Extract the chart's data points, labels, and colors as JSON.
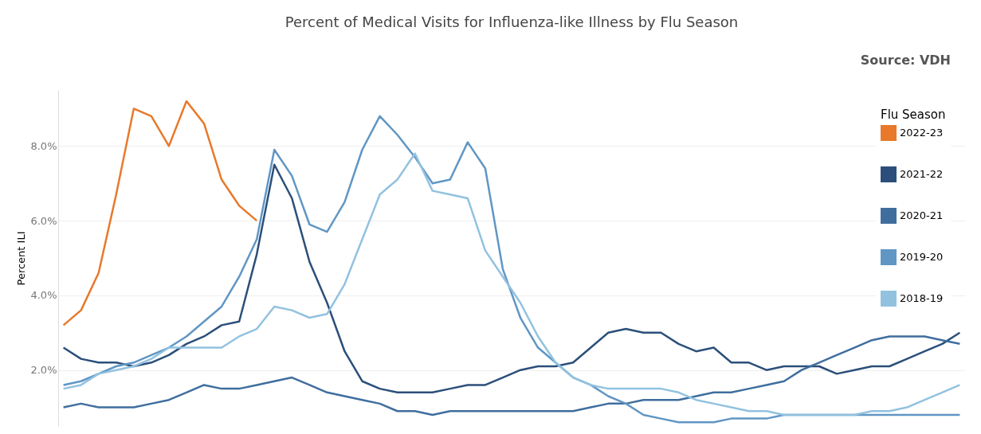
{
  "chart_data": {
    "type": "line",
    "title": "Percent of Medical Visits for Influenza-like Illness by Flu Season",
    "ylabel": "Percent ILI",
    "legend_title": "Flu Season",
    "annotations": [
      "Source: VDH"
    ],
    "categories": [
      null,
      null,
      null,
      null,
      null,
      null,
      null,
      null,
      null,
      null,
      null,
      null,
      null,
      null,
      null,
      null,
      null,
      null,
      null,
      null,
      null,
      null,
      null,
      null,
      null,
      null,
      null,
      null,
      null,
      null,
      null,
      null,
      null,
      null,
      null,
      null,
      null,
      null,
      null,
      null,
      null,
      null,
      null,
      null,
      null,
      null,
      null,
      null,
      null,
      null,
      null,
      null
    ],
    "series": [
      {
        "name": "2022-23",
        "color": "#e8792b",
        "values": [
          3.2,
          3.6,
          4.6,
          6.7,
          9.0,
          8.8,
          8.0,
          9.2,
          8.6,
          7.1,
          6.4,
          6.0,
          null,
          null,
          null,
          null,
          null,
          null,
          null,
          null,
          null,
          null,
          null,
          null,
          null,
          null,
          null,
          null,
          null,
          null,
          null,
          null,
          null,
          null,
          null,
          null,
          null,
          null,
          null,
          null,
          null,
          null,
          null,
          null,
          null,
          null,
          null,
          null,
          null,
          null,
          null,
          null
        ]
      },
      {
        "name": "2021-22",
        "color": "#2b4f7a",
        "values": [
          2.6,
          2.3,
          2.2,
          2.2,
          2.1,
          2.2,
          2.4,
          2.7,
          2.9,
          3.2,
          3.3,
          5.1,
          7.5,
          6.6,
          4.9,
          3.8,
          2.5,
          1.7,
          1.5,
          1.4,
          1.4,
          1.4,
          1.5,
          1.6,
          1.6,
          1.8,
          2.0,
          2.1,
          2.1,
          2.2,
          2.6,
          3.0,
          3.1,
          3.0,
          3.0,
          2.7,
          2.5,
          2.6,
          2.2,
          2.2,
          2.0,
          2.1,
          2.1,
          2.1,
          1.9,
          2.0,
          2.1,
          2.1,
          2.3,
          2.5,
          2.7,
          3.0
        ]
      },
      {
        "name": "2020-21",
        "color": "#3f6e9e",
        "values": [
          1.0,
          1.1,
          1.0,
          1.0,
          1.0,
          1.1,
          1.2,
          1.4,
          1.6,
          1.5,
          1.5,
          1.6,
          1.7,
          1.8,
          1.6,
          1.4,
          1.3,
          1.2,
          1.1,
          0.9,
          0.9,
          0.8,
          0.9,
          0.9,
          0.9,
          0.9,
          0.9,
          0.9,
          0.9,
          0.9,
          1.0,
          1.1,
          1.1,
          1.2,
          1.2,
          1.2,
          1.3,
          1.4,
          1.4,
          1.5,
          1.6,
          1.7,
          2.0,
          2.2,
          2.4,
          2.6,
          2.8,
          2.9,
          2.9,
          2.9,
          2.8,
          2.7
        ]
      },
      {
        "name": "2019-20",
        "color": "#6096c4",
        "values": [
          1.6,
          1.7,
          1.9,
          2.1,
          2.2,
          2.4,
          2.6,
          2.9,
          3.3,
          3.7,
          4.5,
          5.5,
          7.9,
          7.2,
          5.9,
          5.7,
          6.5,
          7.9,
          8.8,
          8.3,
          7.7,
          7.0,
          7.1,
          8.1,
          7.4,
          4.7,
          3.4,
          2.6,
          2.2,
          1.8,
          1.6,
          1.3,
          1.1,
          0.8,
          0.7,
          0.6,
          0.6,
          0.6,
          0.7,
          0.7,
          0.7,
          0.8,
          0.8,
          0.8,
          0.8,
          0.8,
          0.8,
          0.8,
          0.8,
          0.8,
          0.8,
          0.8
        ]
      },
      {
        "name": "2018-19",
        "color": "#92c2e0",
        "values": [
          1.5,
          1.6,
          1.9,
          2.0,
          2.1,
          2.3,
          2.6,
          2.6,
          2.6,
          2.6,
          2.9,
          3.1,
          3.7,
          3.6,
          3.4,
          3.5,
          4.3,
          5.5,
          6.7,
          7.1,
          7.8,
          6.8,
          6.7,
          6.6,
          5.2,
          4.5,
          3.8,
          2.9,
          2.2,
          1.8,
          1.6,
          1.5,
          1.5,
          1.5,
          1.5,
          1.4,
          1.2,
          1.1,
          1.0,
          0.9,
          0.9,
          0.8,
          0.8,
          0.8,
          0.8,
          0.8,
          0.9,
          0.9,
          1.0,
          1.2,
          1.4,
          1.6
        ]
      }
    ],
    "ylim": [
      0.5,
      9.5
    ],
    "yticks": [
      {
        "value": 2,
        "label": "2.0%"
      },
      {
        "value": 4,
        "label": "4.0%"
      },
      {
        "value": 6,
        "label": "6.0%"
      },
      {
        "value": 8,
        "label": "8.0%"
      }
    ],
    "grid": "y",
    "legend": "top right",
    "tick_labels": "y",
    "line_style": "solid",
    "marker": "none"
  }
}
